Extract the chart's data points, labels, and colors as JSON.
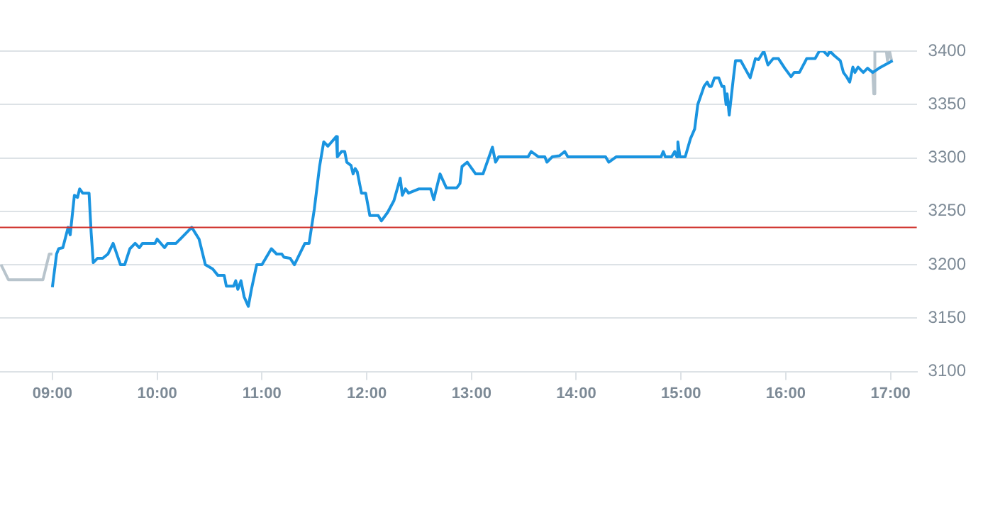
{
  "chart_data": {
    "type": "line",
    "xlim": [
      8.5,
      17.25
    ],
    "ylim": [
      3100,
      3400
    ],
    "xticks": [
      {
        "value": 9,
        "label": "09:00"
      },
      {
        "value": 10,
        "label": "10:00"
      },
      {
        "value": 11,
        "label": "11:00"
      },
      {
        "value": 12,
        "label": "12:00"
      },
      {
        "value": 13,
        "label": "13:00"
      },
      {
        "value": 14,
        "label": "14:00"
      },
      {
        "value": 15,
        "label": "15:00"
      },
      {
        "value": 16,
        "label": "16:00"
      },
      {
        "value": 17,
        "label": "17:00"
      }
    ],
    "yticks": [
      3100,
      3150,
      3200,
      3250,
      3300,
      3350,
      3400
    ],
    "grid": "y",
    "legend": false,
    "marker": "none",
    "line_style": "solid",
    "ref_lines": [
      {
        "axis": "y",
        "value": 3235,
        "color": "#d0302a"
      }
    ],
    "series": [
      {
        "color": "#b8c4cc",
        "x": [
          8.51,
          8.58,
          8.91,
          8.97,
          9.0
        ],
        "values": [
          3200,
          3186,
          3186,
          3210,
          3210
        ]
      },
      {
        "color": "#1a94e0",
        "x": [
          9.0,
          9.04,
          9.06,
          9.1,
          9.15,
          9.17,
          9.21,
          9.24,
          9.26,
          9.29,
          9.35,
          9.37,
          9.39,
          9.43,
          9.48,
          9.53,
          9.58,
          9.65,
          9.69,
          9.74,
          9.79,
          9.83,
          9.86,
          9.98,
          10.0,
          10.07,
          10.1,
          10.18,
          10.33,
          10.4,
          10.46,
          10.53,
          10.58,
          10.64,
          10.66,
          10.73,
          10.75,
          10.77,
          10.8,
          10.83,
          10.87,
          10.9,
          10.95,
          11.0,
          11.09,
          11.14,
          11.19,
          11.21,
          11.27,
          11.31,
          11.41,
          11.45,
          11.5,
          11.55,
          11.59,
          11.63,
          11.71,
          11.72,
          11.76,
          11.79,
          11.81,
          11.85,
          11.87,
          11.89,
          11.91,
          11.95,
          11.99,
          12.03,
          12.11,
          12.14,
          12.2,
          12.26,
          12.32,
          12.34,
          12.37,
          12.4,
          12.5,
          12.61,
          12.64,
          12.7,
          12.76,
          12.86,
          12.89,
          12.91,
          12.96,
          13.04,
          13.11,
          13.2,
          13.23,
          13.26,
          13.54,
          13.57,
          13.64,
          13.7,
          13.72,
          13.77,
          13.84,
          13.89,
          13.92,
          14.28,
          14.31,
          14.38,
          14.7,
          14.81,
          14.83,
          14.85,
          14.91,
          14.94,
          14.96,
          14.97,
          14.99,
          15.04,
          15.09,
          15.13,
          15.16,
          15.22,
          15.25,
          15.27,
          15.29,
          15.32,
          15.36,
          15.39,
          15.41,
          15.43,
          15.44,
          15.46,
          15.5,
          15.52,
          15.57,
          15.66,
          15.71,
          15.74,
          15.79,
          15.83,
          15.88,
          15.93,
          15.99,
          16.05,
          16.08,
          16.13,
          16.2,
          16.28,
          16.32,
          16.36,
          16.4,
          16.42,
          16.46,
          16.52,
          16.55,
          16.58,
          16.61,
          16.64,
          16.66,
          16.69,
          16.74,
          16.78,
          16.83,
          16.89,
          17.02
        ],
        "values": [
          3179,
          3210,
          3215,
          3216,
          3235,
          3228,
          3265,
          3263,
          3271,
          3267,
          3267,
          3230,
          3202,
          3206,
          3206,
          3210,
          3220,
          3200,
          3200,
          3215,
          3220,
          3216,
          3220,
          3220,
          3224,
          3216,
          3220,
          3220,
          3235,
          3224,
          3200,
          3196,
          3190,
          3190,
          3180,
          3180,
          3185,
          3177,
          3185,
          3170,
          3161,
          3177,
          3200,
          3200,
          3215,
          3210,
          3210,
          3207,
          3206,
          3200,
          3220,
          3220,
          3252,
          3292,
          3315,
          3311,
          3320,
          3301,
          3306,
          3306,
          3296,
          3293,
          3285,
          3290,
          3287,
          3267,
          3267,
          3246,
          3246,
          3241,
          3249,
          3260,
          3281,
          3265,
          3271,
          3267,
          3271,
          3271,
          3261,
          3285,
          3272,
          3272,
          3276,
          3292,
          3296,
          3285,
          3285,
          3310,
          3296,
          3301,
          3301,
          3306,
          3301,
          3301,
          3296,
          3301,
          3302,
          3306,
          3301,
          3301,
          3296,
          3301,
          3301,
          3301,
          3306,
          3301,
          3301,
          3306,
          3301,
          3315,
          3301,
          3301,
          3318,
          3327,
          3350,
          3367,
          3371,
          3367,
          3367,
          3375,
          3375,
          3367,
          3367,
          3350,
          3360,
          3340,
          3375,
          3391,
          3391,
          3375,
          3393,
          3392,
          3400,
          3387,
          3393,
          3393,
          3384,
          3376,
          3380,
          3380,
          3393,
          3393,
          3400,
          3400,
          3396,
          3400,
          3396,
          3391,
          3380,
          3376,
          3371,
          3385,
          3380,
          3385,
          3380,
          3384,
          3380,
          3384,
          3391
        ]
      },
      {
        "color": "#b8c4cc",
        "x": [
          16.83,
          16.84,
          16.85,
          16.96,
          16.97,
          16.99,
          17.01
        ],
        "values": [
          3380,
          3360,
          3400,
          3400,
          3391,
          3400,
          3391
        ]
      }
    ]
  }
}
